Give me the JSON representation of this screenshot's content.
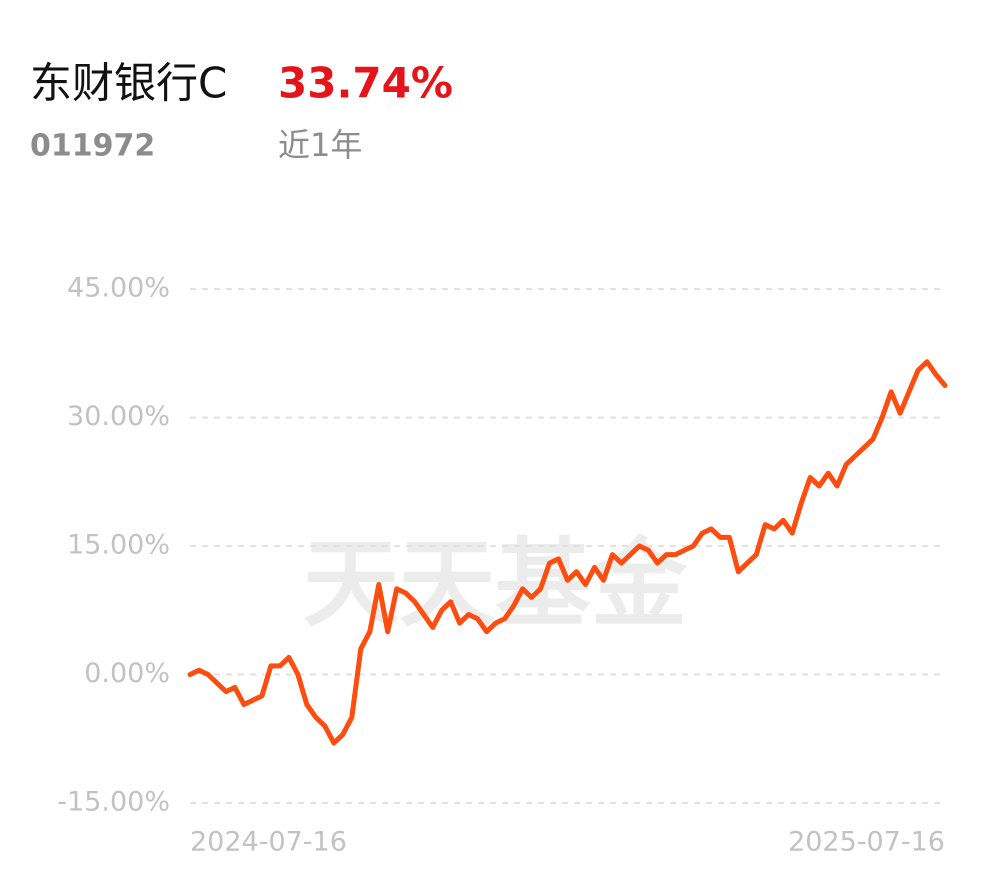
{
  "header": {
    "name": "东财银行C",
    "return": "33.74%",
    "code": "011972",
    "period": "近1年"
  },
  "chart_data": {
    "type": "line",
    "watermark": "天天基金",
    "categories": [
      "2024-07-16",
      null,
      null,
      null,
      null,
      null,
      null,
      null,
      null,
      null,
      null,
      null,
      null,
      null,
      null,
      null,
      null,
      null,
      null,
      null,
      null,
      null,
      null,
      null,
      null,
      null,
      null,
      null,
      null,
      null,
      null,
      null,
      null,
      null,
      null,
      null,
      null,
      null,
      null,
      null,
      null,
      null,
      null,
      null,
      null,
      null,
      null,
      null,
      null,
      null,
      null,
      null,
      null,
      null,
      null,
      null,
      null,
      null,
      null,
      null,
      null,
      null,
      null,
      null,
      null,
      null,
      null,
      null,
      null,
      null,
      null,
      null,
      null,
      null,
      null,
      null,
      null,
      null,
      null,
      null,
      null,
      null,
      null,
      null,
      "2025-07-16"
    ],
    "series": [
      {
        "color": "#ff4d0f",
        "values": [
          0,
          0.5,
          0,
          -1,
          -2,
          -1.5,
          -3.5,
          -3,
          -2.5,
          1,
          1,
          2,
          0,
          -3.5,
          -5,
          -6,
          -8,
          -7,
          -5,
          3,
          5,
          10.5,
          5,
          10,
          9.5,
          8.5,
          7,
          5.5,
          7.5,
          8.5,
          6,
          7,
          6.5,
          5,
          6,
          6.5,
          8,
          10,
          9,
          10,
          13,
          13.5,
          11,
          12,
          10.5,
          12.5,
          11,
          14,
          13,
          14,
          15,
          14.5,
          13,
          14,
          14,
          14.5,
          15,
          16.5,
          17,
          16,
          16,
          12,
          13,
          14,
          17.5,
          17,
          18,
          16.5,
          20,
          23,
          22,
          23.5,
          22,
          24.5,
          25.5,
          26.5,
          27.5,
          30,
          33,
          30.5,
          33,
          35.5,
          36.5,
          35,
          33.74
        ]
      }
    ],
    "ylim": [
      -15,
      45
    ],
    "yticks": [
      {
        "value": -15,
        "label": "-15.00%"
      },
      {
        "value": 0,
        "label": "0.00%"
      },
      {
        "value": 15,
        "label": "15.00%"
      },
      {
        "value": 30,
        "label": "30.00%"
      },
      {
        "value": 45,
        "label": "45.00%"
      }
    ],
    "grid": true
  }
}
